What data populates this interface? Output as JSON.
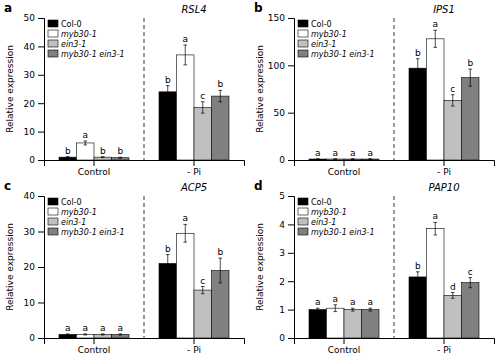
{
  "chart_data": [
    {
      "type": "bar",
      "panel_label": "a",
      "title": "RSL4",
      "ylabel": "Relative expression",
      "categories": [
        "Control",
        "- Pi"
      ],
      "ylim": [
        0,
        50
      ],
      "yticks": [
        0,
        10,
        20,
        30,
        40,
        50
      ],
      "legend": "upper left",
      "series": [
        {
          "name": "Col-0",
          "color": "#000000",
          "values": [
            1.0,
            24.0
          ],
          "errors": [
            0.2,
            2.2
          ],
          "annotations": [
            "b",
            "b"
          ]
        },
        {
          "name": "myb30-1",
          "color": "#ffffff",
          "values": [
            6.0,
            37.0
          ],
          "errors": [
            0.7,
            3.5
          ],
          "annotations": [
            "a",
            "a"
          ]
        },
        {
          "name": "ein3-1",
          "color": "#c0c0c0",
          "values": [
            1.0,
            18.5
          ],
          "errors": [
            0.15,
            2.0
          ],
          "annotations": [
            "b",
            "c"
          ]
        },
        {
          "name": "myb30-1 ein3-1",
          "color": "#808080",
          "values": [
            0.8,
            22.5
          ],
          "errors": [
            0.15,
            2.0
          ],
          "annotations": [
            "b",
            "b"
          ]
        }
      ]
    },
    {
      "type": "bar",
      "panel_label": "b",
      "title": "IPS1",
      "ylabel": "Relative expression",
      "categories": [
        "Control",
        "- Pi"
      ],
      "ylim": [
        0,
        150
      ],
      "yticks": [
        0,
        50,
        100,
        150
      ],
      "legend": "upper left",
      "series": [
        {
          "name": "Col-0",
          "color": "#000000",
          "values": [
            1.0,
            97.0
          ],
          "errors": [
            0.3,
            10.0
          ],
          "annotations": [
            "a",
            "b"
          ]
        },
        {
          "name": "myb30-1",
          "color": "#ffffff",
          "values": [
            1.0,
            128.0
          ],
          "errors": [
            0.3,
            9.0
          ],
          "annotations": [
            "a",
            "a"
          ]
        },
        {
          "name": "ein3-1",
          "color": "#c0c0c0",
          "values": [
            1.0,
            63.0
          ],
          "errors": [
            0.3,
            6.0
          ],
          "annotations": [
            "a",
            "c"
          ]
        },
        {
          "name": "myb30-1 ein3-1",
          "color": "#808080",
          "values": [
            1.0,
            87.0
          ],
          "errors": [
            0.3,
            9.0
          ],
          "annotations": [
            "a",
            "b"
          ]
        }
      ]
    },
    {
      "type": "bar",
      "panel_label": "c",
      "title": "ACP5",
      "ylabel": "Relative expression",
      "categories": [
        "Control",
        "- Pi"
      ],
      "ylim": [
        0,
        40
      ],
      "yticks": [
        0,
        10,
        20,
        30,
        40
      ],
      "legend": "upper left",
      "series": [
        {
          "name": "Col-0",
          "color": "#000000",
          "values": [
            1.0,
            21.0
          ],
          "errors": [
            0.15,
            2.5
          ],
          "annotations": [
            "a",
            "b"
          ]
        },
        {
          "name": "myb30-1",
          "color": "#ffffff",
          "values": [
            1.0,
            29.5
          ],
          "errors": [
            0.15,
            2.5
          ],
          "annotations": [
            "a",
            "a"
          ]
        },
        {
          "name": "ein3-1",
          "color": "#c0c0c0",
          "values": [
            1.0,
            13.5
          ],
          "errors": [
            0.15,
            1.0
          ],
          "annotations": [
            "a",
            "c"
          ]
        },
        {
          "name": "myb30-1 ein3-1",
          "color": "#808080",
          "values": [
            1.0,
            19.0
          ],
          "errors": [
            0.15,
            3.5
          ],
          "annotations": [
            "a",
            "b"
          ]
        }
      ]
    },
    {
      "type": "bar",
      "panel_label": "d",
      "title": "PAP10",
      "ylabel": "Relative expression",
      "categories": [
        "Control",
        "- Pi"
      ],
      "ylim": [
        0,
        5
      ],
      "yticks": [
        0,
        1,
        2,
        3,
        4,
        5
      ],
      "legend": "upper left",
      "series": [
        {
          "name": "Col-0",
          "color": "#000000",
          "values": [
            1.0,
            2.15
          ],
          "errors": [
            0.05,
            0.18
          ],
          "annotations": [
            "a",
            "b"
          ]
        },
        {
          "name": "myb30-1",
          "color": "#ffffff",
          "values": [
            1.05,
            3.85
          ],
          "errors": [
            0.12,
            0.22
          ],
          "annotations": [
            "a",
            "a"
          ]
        },
        {
          "name": "ein3-1",
          "color": "#c0c0c0",
          "values": [
            1.0,
            1.5
          ],
          "errors": [
            0.05,
            0.1
          ],
          "annotations": [
            "a",
            "d"
          ]
        },
        {
          "name": "myb30-1 ein3-1",
          "color": "#808080",
          "values": [
            1.0,
            1.95
          ],
          "errors": [
            0.05,
            0.18
          ],
          "annotations": [
            "a",
            "c"
          ]
        }
      ]
    }
  ]
}
